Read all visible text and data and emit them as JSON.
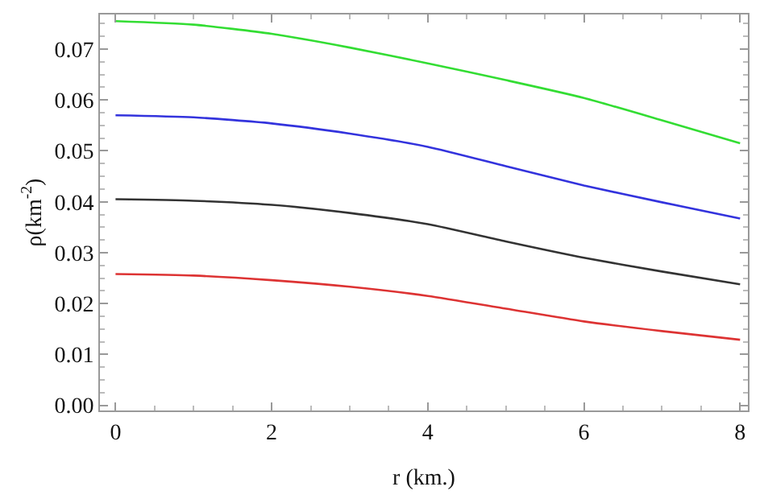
{
  "chart_data": {
    "type": "line",
    "xlabel": "r (km.)",
    "ylabel": "ρ(km$^{-2}$)",
    "x": [
      0,
      1,
      2,
      3,
      4,
      5,
      6,
      7,
      8
    ],
    "series": [
      {
        "color": "#33dd33",
        "values": [
          0.0755,
          0.0748,
          0.073,
          0.0703,
          0.0672,
          0.0639,
          0.0604,
          0.056,
          0.0515
        ]
      },
      {
        "color": "#3333dd",
        "values": [
          0.057,
          0.0566,
          0.0554,
          0.0534,
          0.0508,
          0.047,
          0.0432,
          0.0399,
          0.0367
        ]
      },
      {
        "color": "#333333",
        "values": [
          0.0405,
          0.0402,
          0.0394,
          0.0378,
          0.0356,
          0.0322,
          0.029,
          0.0263,
          0.0238
        ]
      },
      {
        "color": "#dd3333",
        "values": [
          0.0258,
          0.0255,
          0.0246,
          0.0233,
          0.0215,
          0.019,
          0.0165,
          0.0146,
          0.0129
        ]
      }
    ],
    "xlim": [
      -0.2,
      8.1
    ],
    "ylim": [
      -0.001,
      0.0768
    ],
    "xticks": [
      0,
      2,
      4,
      6,
      8
    ],
    "yticks": [
      {
        "value": 0,
        "label": "0.00"
      },
      {
        "value": 0.01,
        "label": "0.01"
      },
      {
        "value": 0.02,
        "label": "0.02"
      },
      {
        "value": 0.03,
        "label": "0.03"
      },
      {
        "value": 0.04,
        "label": "0.04"
      },
      {
        "value": 0.05,
        "label": "0.05"
      },
      {
        "value": 0.06,
        "label": "0.06"
      },
      {
        "value": 0.07,
        "label": "0.07"
      }
    ],
    "marker": "none",
    "line_style": "solid"
  }
}
